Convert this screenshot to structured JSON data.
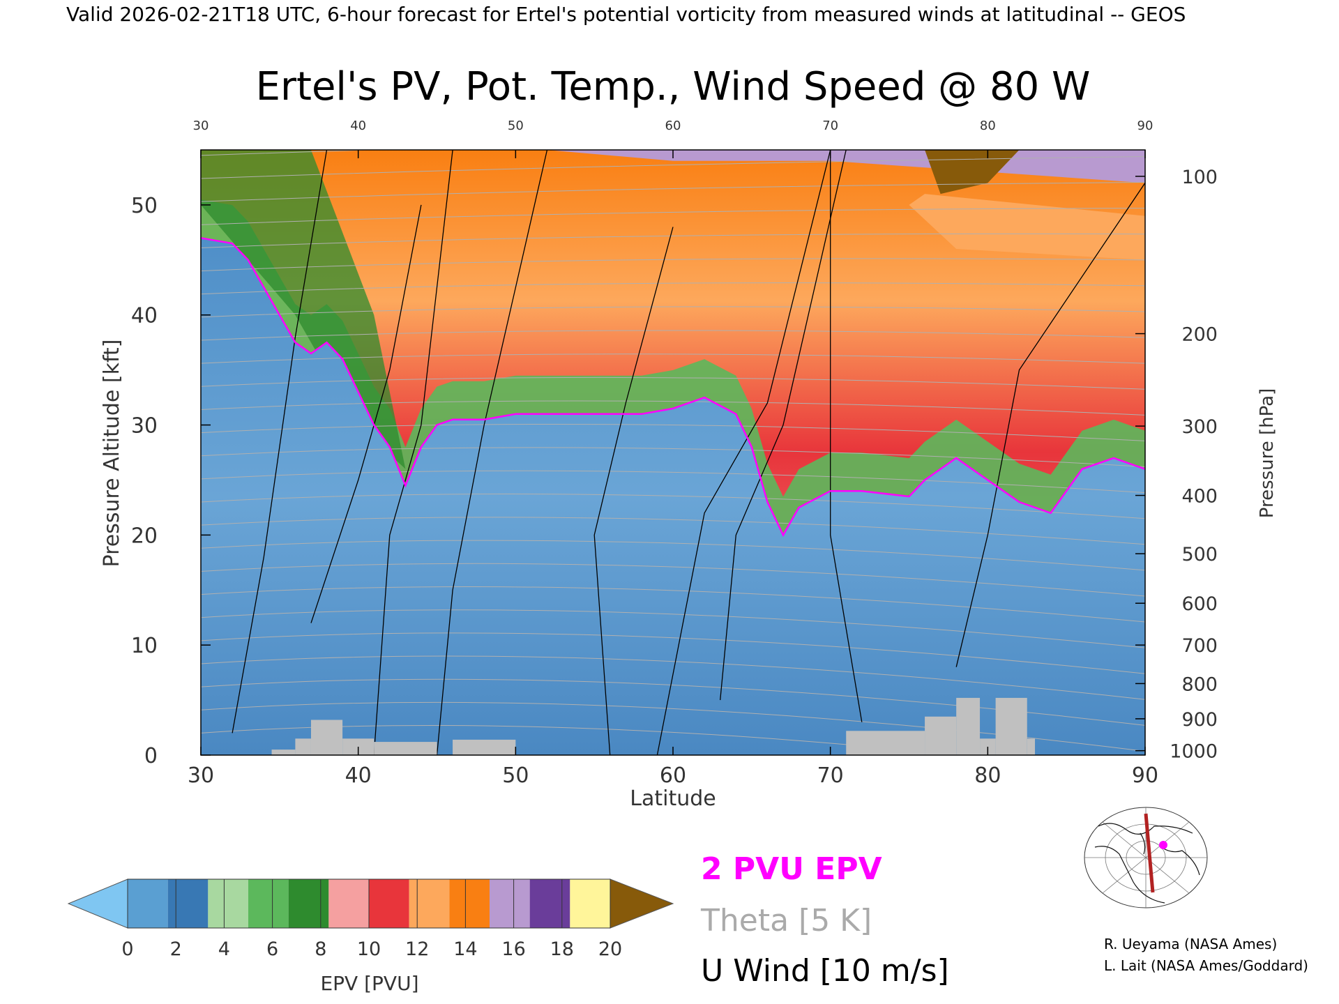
{
  "header": {
    "banner": "Valid 2026-02-21T18 UTC, 6-hour forecast for Ertel's potential vorticity from measured winds at latitudinal -- GEOS",
    "title": "Ertel's PV, Pot. Temp., Wind Speed @ 80 W"
  },
  "chart_data": {
    "type": "heatmap",
    "title": "Ertel's PV, Pot. Temp., Wind Speed @ 80 W",
    "xlabel": "Latitude",
    "ylabel": "Pressure Altitude [kft]",
    "y2label": "Pressure [hPa]",
    "xlim": [
      30,
      90
    ],
    "ylim": [
      0,
      55
    ],
    "x_ticks": [
      30,
      40,
      50,
      60,
      70,
      80,
      90
    ],
    "x_tick_labels": [
      "30",
      "40",
      "50",
      "60",
      "70",
      "80",
      "90"
    ],
    "y_ticks": [
      0,
      10,
      20,
      30,
      40,
      50
    ],
    "y_tick_labels": [
      "0",
      "10",
      "20",
      "30",
      "40",
      "50"
    ],
    "pressure_ticks": [
      {
        "label": "100",
        "alt": 52.6
      },
      {
        "label": "200",
        "alt": 38.3
      },
      {
        "label": "300",
        "alt": 29.9
      },
      {
        "label": "400",
        "alt": 23.6
      },
      {
        "label": "500",
        "alt": 18.3
      },
      {
        "label": "600",
        "alt": 13.8
      },
      {
        "label": "700",
        "alt": 10.0
      },
      {
        "label": "800",
        "alt": 6.5
      },
      {
        "label": "900",
        "alt": 3.3
      },
      {
        "label": "1000",
        "alt": 0.4
      }
    ],
    "tropopause_2pvu": {
      "name": "2 PVU EPV",
      "color": "#ff00ff",
      "lat": [
        30,
        32,
        33,
        35,
        36,
        37,
        38,
        39,
        40,
        41,
        42,
        43,
        44,
        45,
        46,
        48,
        50,
        52,
        55,
        58,
        60,
        62,
        64,
        65,
        66,
        67,
        68,
        70,
        72,
        75,
        76,
        78,
        80,
        82,
        84,
        85,
        86,
        88,
        90
      ],
      "alt": [
        47,
        46.5,
        45,
        40,
        37.5,
        36.5,
        37.5,
        36,
        33,
        30,
        28,
        24.5,
        28,
        30,
        30.5,
        30.5,
        31,
        31,
        31,
        31,
        31.5,
        32.5,
        31,
        28,
        23,
        20,
        22.5,
        24,
        24,
        23.5,
        25,
        27,
        25,
        23,
        22,
        24,
        26,
        27,
        26
      ]
    },
    "epv_colorbar": {
      "label": "EPV [PVU]",
      "ticks": [
        "0",
        "2",
        "4",
        "6",
        "8",
        "10",
        "12",
        "14",
        "16",
        "18",
        "20"
      ],
      "colors": [
        "#7fc6f2",
        "#5a9fd2",
        "#3878b4",
        "#a8d8a0",
        "#5cb85c",
        "#2e8b2e",
        "#f5a0a0",
        "#e8353b",
        "#fda85c",
        "#f97f12",
        "#b89ad0",
        "#6a3d9a",
        "#fff59a",
        "#875a0a"
      ]
    },
    "surface_orography_alt": [
      0,
      1,
      2,
      3,
      4
    ],
    "legend": [
      {
        "label": "2 PVU EPV",
        "color": "#ff00ff"
      },
      {
        "label": "Theta [5 K]",
        "color": "#aaaaaa"
      },
      {
        "label": "U Wind [10 m/s]",
        "color": "#000000"
      }
    ]
  },
  "credits": {
    "line1": "R. Ueyama (NASA Ames)",
    "line2": "L. Lait (NASA Ames/Goddard)"
  },
  "map_inset": {
    "icon": "polar-map-icon",
    "cross_section_color": "#b22222",
    "marker_color": "#ff00ff"
  }
}
